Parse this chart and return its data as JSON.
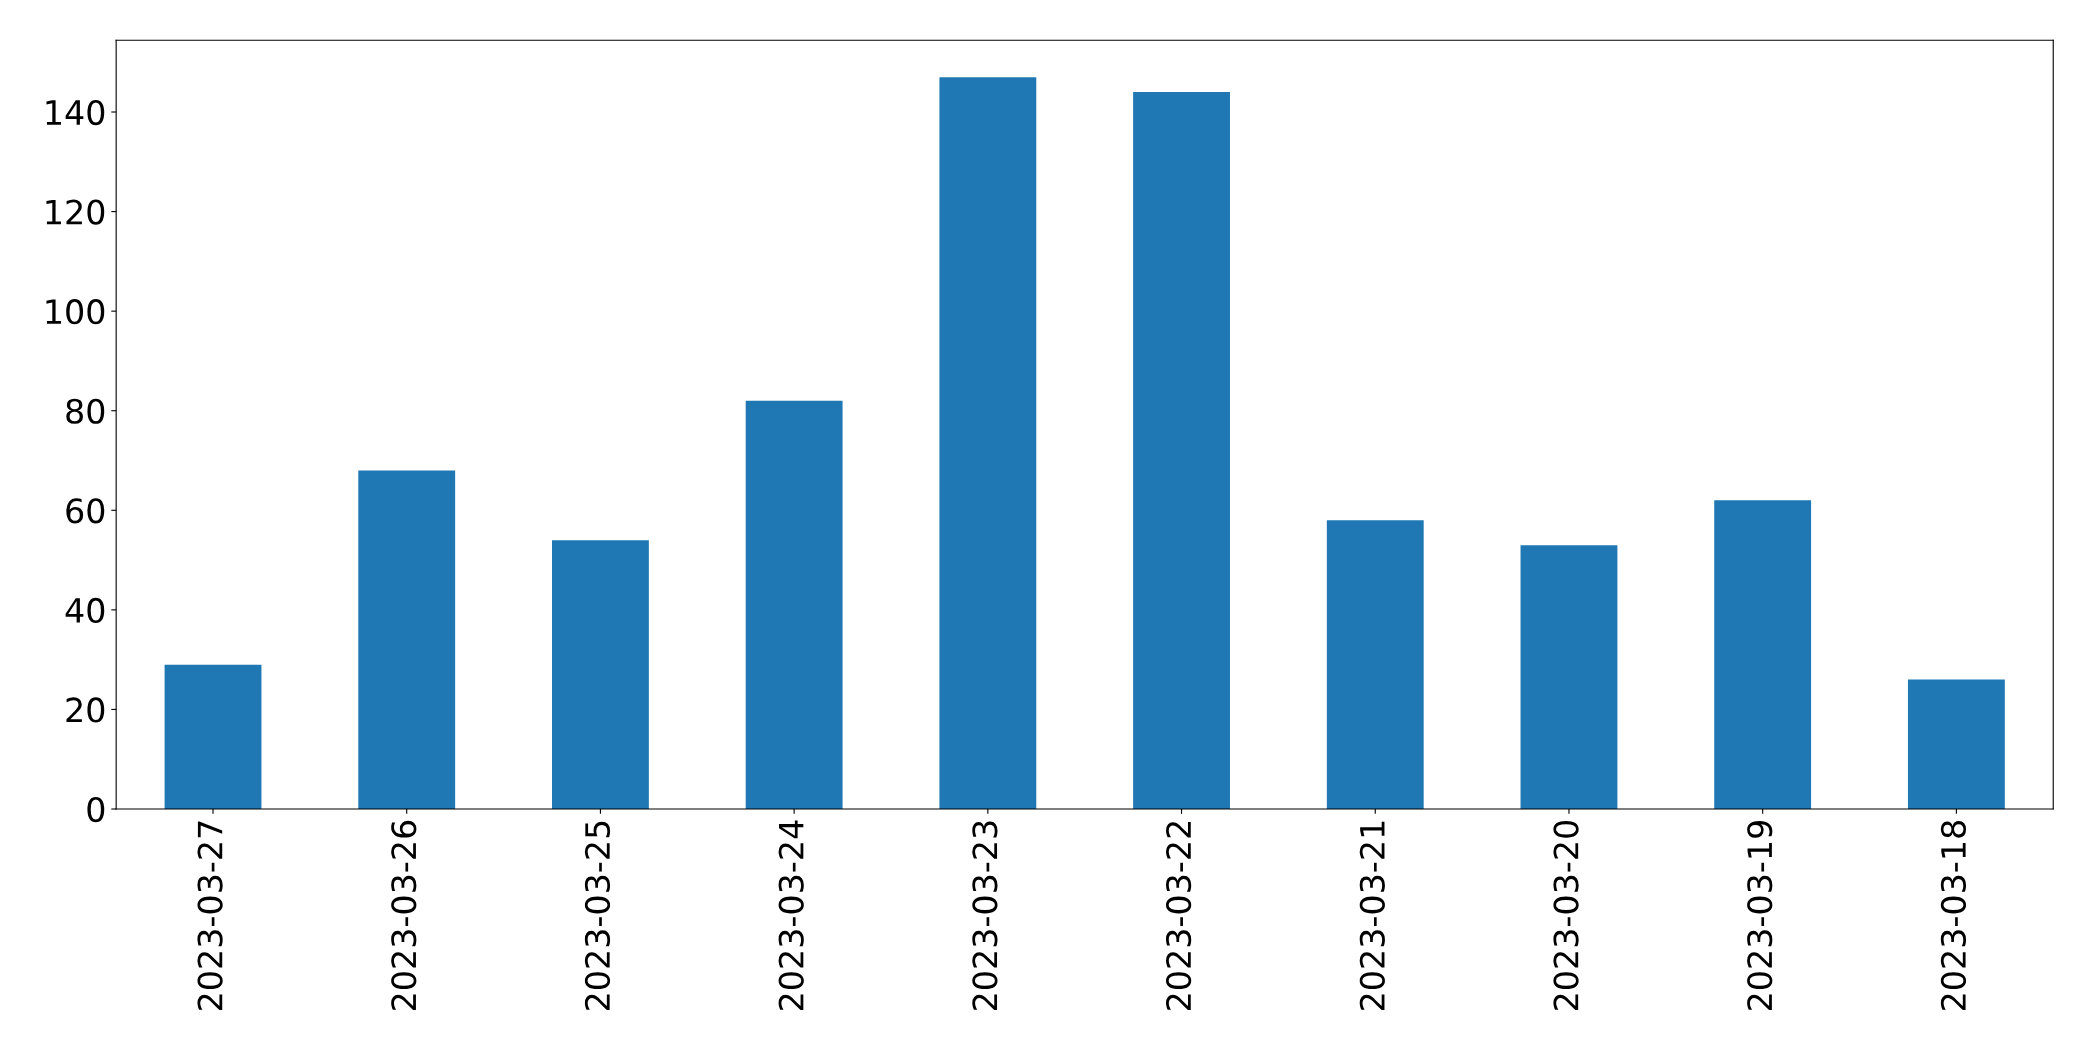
{
  "chart_data": {
    "type": "bar",
    "categories": [
      "2023-03-27",
      "2023-03-26",
      "2023-03-25",
      "2023-03-24",
      "2023-03-23",
      "2023-03-22",
      "2023-03-21",
      "2023-03-20",
      "2023-03-19",
      "2023-03-18"
    ],
    "values": [
      29,
      68,
      54,
      82,
      147,
      144,
      58,
      53,
      62,
      26
    ],
    "color": "#1f77b4",
    "ylim": [
      0,
      154.4
    ],
    "yticks": [
      0,
      20,
      40,
      60,
      80,
      100,
      120,
      140
    ],
    "grid": false
  }
}
